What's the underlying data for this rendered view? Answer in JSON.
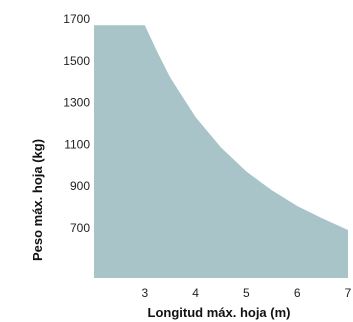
{
  "chart_data": {
    "type": "area",
    "title": "",
    "xlabel": "Longitud máx. hoja (m)",
    "ylabel": "Peso máx. hoja (kg)",
    "xlim": [
      2,
      7
    ],
    "ylim": [
      460,
      1700
    ],
    "x_ticks": [
      "3",
      "4",
      "5",
      "6",
      "7"
    ],
    "y_ticks": [
      "700",
      "900",
      "1100",
      "1300",
      "1500",
      "1700"
    ],
    "grid": false,
    "legend": "none",
    "fill_color": "#a9c4c9",
    "series": [
      {
        "x": [
          2,
          3,
          3.25,
          3.5,
          4,
          4.5,
          5,
          5.5,
          6,
          6.5,
          7
        ],
        "y": [
          1670,
          1670,
          1540,
          1420,
          1230,
          1085,
          970,
          880,
          805,
          745,
          690
        ]
      }
    ]
  }
}
